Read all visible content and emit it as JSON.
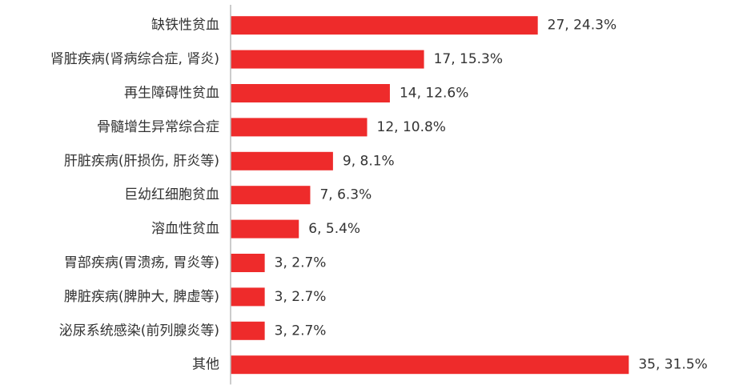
{
  "chart_data": {
    "type": "bar",
    "orientation": "horizontal",
    "title": "",
    "xlabel": "",
    "ylabel": "",
    "xlim": [
      0,
      35
    ],
    "grid": false,
    "legend": "none",
    "bar_color": "#EE2B2B",
    "axis_color": "#BBBBBB",
    "categories": [
      "缺铁性贫血",
      "肾脏疾病(肾病综合症, 肾炎)",
      "再生障碍性贫血",
      "骨髓增生异常综合症",
      "肝脏疾病(肝损伤, 肝炎等)",
      "巨幼红细胞贫血",
      "溶血性贫血",
      "胃部疾病(胃溃疡, 胃炎等)",
      "脾脏疾病(脾肿大, 脾虚等)",
      "泌尿系统感染(前列腺炎等)",
      "其他"
    ],
    "values": [
      27,
      17,
      14,
      12,
      9,
      7,
      6,
      3,
      3,
      3,
      35
    ],
    "percents": [
      "24.3%",
      "15.3%",
      "12.6%",
      "10.8%",
      "8.1%",
      "6.3%",
      "5.4%",
      "2.7%",
      "2.7%",
      "2.7%",
      "31.5%"
    ],
    "data_labels": [
      "27, 24.3%",
      "17, 15.3%",
      "14, 12.6%",
      "12, 10.8%",
      "9, 8.1%",
      "7, 6.3%",
      "6, 5.4%",
      "3, 2.7%",
      "3, 2.7%",
      "3, 2.7%",
      "35, 31.5%"
    ]
  }
}
